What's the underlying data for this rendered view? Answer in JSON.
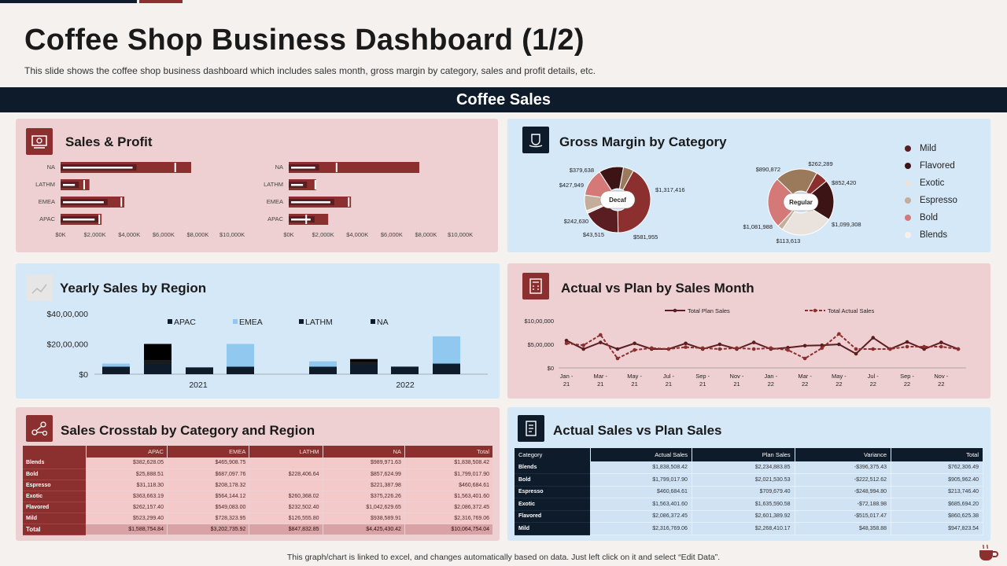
{
  "header": {
    "title": "Coffee Shop Business Dashboard (1/2)",
    "subtitle": "This slide shows the coffee shop business dashboard which includes sales month, gross margin by category, sales and profit details, etc.",
    "banner": "Coffee Sales"
  },
  "panels": {
    "sales_profit": "Sales & Profit",
    "gross_margin": "Gross Margin by Category",
    "yearly_sales": "Yearly Sales by Region",
    "actual_plan_month": "Actual vs Plan by Sales Month",
    "crosstab": "Sales Crosstab  by Category and Region",
    "actual_vs_plan": "Actual Sales vs Plan Sales"
  },
  "colors": {
    "maroon": "#8b2f2f",
    "navy": "#0d1b2a",
    "pink_panel": "#efd0d2",
    "blue_panel": "#d5e8f8",
    "light_blue_bar": "#90c8f0"
  },
  "chart_data": [
    {
      "type": "bar",
      "id": "sales-profit-left",
      "categories": [
        "NA",
        "LATHM",
        "EMEA",
        "APAC"
      ],
      "values": [
        8600,
        1900,
        4200,
        2700
      ],
      "inner": [
        5000,
        1200,
        3100,
        2500
      ],
      "marker": [
        7500,
        1500,
        3950,
        2500
      ],
      "xticks": [
        "$0K",
        "$2,000K",
        "$4,000K",
        "$6,000K",
        "$8,000K",
        "$10,000K"
      ],
      "xlim": [
        0,
        10000
      ]
    },
    {
      "type": "bar",
      "id": "sales-profit-right",
      "categories": [
        "NA",
        "LATHM",
        "EMEA",
        "APAC"
      ],
      "values": [
        8600,
        1800,
        4100,
        2600
      ],
      "inner": [
        2000,
        1200,
        3000,
        1700
      ],
      "marker": [
        3100,
        1700,
        3900,
        1100
      ],
      "xticks": [
        "$0K",
        "$2,000K",
        "$4,000K",
        "$6,000K",
        "$8,000K",
        "$10,000K"
      ],
      "xlim": [
        0,
        10000
      ]
    },
    {
      "type": "pie",
      "id": "gross-margin-decaf",
      "center_label": "Decaf",
      "slices": [
        {
          "label": "$1,317,416",
          "value": 1317416,
          "color": "#8b2f2f"
        },
        {
          "label": "$581,955",
          "value": 581955,
          "color": "#5a1e22"
        },
        {
          "label": "$43,515",
          "value": 43515,
          "color": "#eae2dc"
        },
        {
          "label": "$242,630",
          "value": 242630,
          "color": "#c4ad9a"
        },
        {
          "label": "$427,949",
          "value": 427949,
          "color": "#d47878"
        },
        {
          "label": "$379,638",
          "value": 379638,
          "color": "#3d1416"
        },
        {
          "label": "",
          "value": 160000,
          "color": "#9b7a5c"
        }
      ]
    },
    {
      "type": "pie",
      "id": "gross-margin-regular",
      "center_label": "Regular",
      "slices": [
        {
          "label": "$262,289",
          "value": 262289,
          "color": "#8b2f2f"
        },
        {
          "label": "$852,420",
          "value": 852420,
          "color": "#3d1416"
        },
        {
          "label": "$1,099,308",
          "value": 1099308,
          "color": "#eae2dc"
        },
        {
          "label": "$113,613",
          "value": 113613,
          "color": "#c4ad9a"
        },
        {
          "label": "$1,081,988",
          "value": 1081988,
          "color": "#d47878"
        },
        {
          "label": "$890,872",
          "value": 890872,
          "color": "#9b7a5c"
        }
      ]
    },
    {
      "type": "bar",
      "id": "yearly-sales-region",
      "groups": [
        "2021",
        "2022"
      ],
      "series": [
        {
          "name": "APAC",
          "color": "#0d1b2a"
        },
        {
          "name": "EMEA",
          "color": "#90c8f0"
        },
        {
          "name": "LATHM",
          "color": "#0d1b2a"
        },
        {
          "name": "NA",
          "color": "#0d1b2a"
        }
      ],
      "bars": [
        {
          "group": 0,
          "segments": [
            500000,
            200000,
            0,
            0
          ]
        },
        {
          "group": 0,
          "segments": [
            700000,
            0,
            200000,
            1100000
          ]
        },
        {
          "group": 0,
          "segments": [
            450000,
            0,
            0,
            0
          ]
        },
        {
          "group": 0,
          "segments": [
            500000,
            1500000,
            0,
            0
          ]
        },
        {
          "group": 1,
          "segments": [
            500000,
            350000,
            0,
            0
          ]
        },
        {
          "group": 1,
          "segments": [
            650000,
            0,
            150000,
            200000
          ]
        },
        {
          "group": 1,
          "segments": [
            500000,
            0,
            0,
            0
          ]
        },
        {
          "group": 1,
          "segments": [
            700000,
            1800000,
            0,
            0
          ]
        }
      ],
      "yticks": [
        "$0",
        "$20,00,000",
        "$40,00,000"
      ],
      "ylim": [
        0,
        4000000
      ]
    },
    {
      "type": "line",
      "id": "actual-vs-plan-month",
      "x": [
        "Jan - 21",
        "Feb - 21",
        "Mar - 21",
        "Apr - 21",
        "May - 21",
        "Jun - 21",
        "Jul - 21",
        "Aug - 21",
        "Sep - 21",
        "Oct - 21",
        "Nov - 21",
        "Dec - 21",
        "Jan - 22",
        "Feb - 22",
        "Mar - 22",
        "Apr - 22",
        "May - 22",
        "Jun - 22",
        "Jul - 22",
        "Aug - 22",
        "Sep - 22",
        "Oct - 22",
        "Nov - 22",
        "Dec - 22"
      ],
      "xticks": [
        "Jan - 21",
        "Mar - 21",
        "May - 21",
        "Jul - 21",
        "Sep - 21",
        "Nov - 21",
        "Jan - 22",
        "Mar - 22",
        "May - 22",
        "Jul - 22",
        "Sep - 22",
        "Nov - 22"
      ],
      "series": [
        {
          "name": "Total Plan Sales",
          "values": [
            580000,
            400000,
            540000,
            400000,
            520000,
            400000,
            400000,
            520000,
            400000,
            500000,
            400000,
            540000,
            400000,
            430000,
            470000,
            480000,
            500000,
            300000,
            640000,
            400000,
            550000,
            400000,
            540000,
            400000
          ]
        },
        {
          "name": "Total Actual Sales",
          "values": [
            520000,
            480000,
            700000,
            200000,
            380000,
            420000,
            400000,
            440000,
            420000,
            400000,
            420000,
            400000,
            420000,
            380000,
            200000,
            420000,
            720000,
            400000,
            400000,
            400000,
            450000,
            450000,
            450000,
            400000
          ]
        }
      ],
      "yticks": [
        "$0",
        "$5,00,000",
        "$10,00,000"
      ],
      "ylim": [
        0,
        1000000
      ]
    },
    {
      "type": "table",
      "id": "sales-crosstab",
      "columns": [
        "",
        "APAC",
        "EMEA",
        "LATHM",
        "NA",
        "Total"
      ],
      "rows": [
        [
          "Blends",
          "$382,628.05",
          "$465,908.75",
          "",
          "$989,971.63",
          "$1,838,508.42"
        ],
        [
          "Bold",
          "$25,888.51",
          "$687,097.76",
          "$228,406.64",
          "$857,624.99",
          "$1,799,017.90"
        ],
        [
          "Espresso",
          "$31,118.30",
          "$208,178.32",
          "",
          "$221,387.98",
          "$460,684.61"
        ],
        [
          "Exotic",
          "$363,663.19",
          "$564,144.12",
          "$260,368.02",
          "$375,226.26",
          "$1,563,401.60"
        ],
        [
          "Flavored",
          "$262,157.40",
          "$549,083.00",
          "$232,502.40",
          "$1,042,629.65",
          "$2,086,372.45"
        ],
        [
          "Mild",
          "$523,299.40",
          "$728,323.95",
          "$126,555.80",
          "$938,589.91",
          "$2,316,769.06"
        ],
        [
          "Total",
          "$1,588,754.84",
          "$3,202,735.92",
          "$847,832.85",
          "$4,425,430.42",
          "$10,064,754.04"
        ]
      ]
    },
    {
      "type": "table",
      "id": "actual-vs-plan-sales",
      "columns": [
        "Category",
        "Actual  Sales",
        "Plan  Sales",
        "Variance",
        "Total"
      ],
      "rows": [
        [
          "Blends",
          "$1,838,508.42",
          "$2,234,883.85",
          "-$396,375.43",
          "$762,306.49"
        ],
        [
          "Bold",
          "$1,799,017.90",
          "$2,021,530.53",
          "-$222,512.62",
          "$905,962.40"
        ],
        [
          "Espresso",
          "$460,684.61",
          "$709,679.40",
          "-$248,994.80",
          "$213,746.40"
        ],
        [
          "Exotic",
          "$1,563,401.60",
          "$1,635,590.58",
          "-$72,188.98",
          "$685,694.20"
        ],
        [
          "Flavored",
          "$2,086,372.45",
          "$2,601,389.92",
          "-$515,017.47",
          "$860,625.38"
        ],
        [
          "Mild",
          "$2,316,769.06",
          "$2,268,410.17",
          "$48,358.88",
          "$947,823.54"
        ]
      ]
    }
  ],
  "legend_categories": [
    {
      "label": "Mild",
      "color": "#5a1e22"
    },
    {
      "label": "Flavored",
      "color": "#3d1416"
    },
    {
      "label": "Exotic",
      "color": "#eae2dc"
    },
    {
      "label": "Espresso",
      "color": "#c4ad9a"
    },
    {
      "label": "Bold",
      "color": "#d47878"
    },
    {
      "label": "Blends",
      "color": "#f5f0ec"
    }
  ],
  "footer": "This graph/chart is linked to excel, and changes automatically based on data. Just left click on it and select “Edit Data”."
}
